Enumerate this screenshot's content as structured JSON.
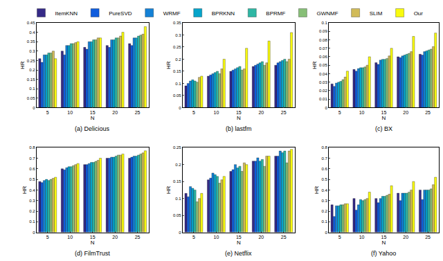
{
  "chart_data": [
    {
      "type": "bar",
      "title": "(a) Delicious",
      "x_label": "N",
      "y_label": "HR",
      "grid": false,
      "categories": [
        "5",
        "10",
        "15",
        "20",
        "25"
      ],
      "ylim": [
        0,
        0.45
      ],
      "yticks": [
        0,
        0.05,
        0.1,
        0.15,
        0.2,
        0.25,
        0.3,
        0.35,
        0.4,
        0.45
      ],
      "series": [
        {
          "name": "ItemKNN",
          "color": "#352a87",
          "values": [
            0.26,
            0.3,
            0.32,
            0.33,
            0.34
          ]
        },
        {
          "name": "PureSVD",
          "color": "#0f5cdd",
          "values": [
            0.24,
            0.28,
            0.31,
            0.32,
            0.33
          ]
        },
        {
          "name": "WRMF",
          "color": "#1481d6",
          "values": [
            0.28,
            0.33,
            0.35,
            0.36,
            0.37
          ]
        },
        {
          "name": "BPRKNN",
          "color": "#06a4ca",
          "values": [
            0.28,
            0.33,
            0.35,
            0.36,
            0.37
          ]
        },
        {
          "name": "BPRMF",
          "color": "#2eb7a4",
          "values": [
            0.29,
            0.34,
            0.36,
            0.37,
            0.38
          ]
        },
        {
          "name": "GWNMF",
          "color": "#87bf77",
          "values": [
            0.29,
            0.34,
            0.36,
            0.37,
            0.385
          ]
        },
        {
          "name": "SLIM",
          "color": "#d1bb59",
          "values": [
            0.3,
            0.345,
            0.37,
            0.38,
            0.39
          ]
        },
        {
          "name": "Our",
          "color": "#f9fb0e",
          "values": [
            0.26,
            0.35,
            0.37,
            0.4,
            0.43
          ]
        }
      ]
    },
    {
      "type": "bar",
      "title": "(b) lastfm",
      "x_label": "N",
      "y_label": "HR",
      "grid": false,
      "categories": [
        "5",
        "10",
        "15",
        "20",
        "25"
      ],
      "ylim": [
        0,
        0.35
      ],
      "yticks": [
        0,
        0.05,
        0.1,
        0.15,
        0.2,
        0.25,
        0.3,
        0.35
      ],
      "series": [
        {
          "name": "ItemKNN",
          "color": "#352a87",
          "values": [
            0.09,
            0.13,
            0.15,
            0.17,
            0.175
          ]
        },
        {
          "name": "PureSVD",
          "color": "#0f5cdd",
          "values": [
            0.1,
            0.135,
            0.155,
            0.175,
            0.185
          ]
        },
        {
          "name": "WRMF",
          "color": "#1481d6",
          "values": [
            0.11,
            0.14,
            0.16,
            0.18,
            0.19
          ]
        },
        {
          "name": "BPRKNN",
          "color": "#06a4ca",
          "values": [
            0.115,
            0.145,
            0.165,
            0.185,
            0.195
          ]
        },
        {
          "name": "BPRMF",
          "color": "#2eb7a4",
          "values": [
            0.11,
            0.15,
            0.17,
            0.19,
            0.2
          ]
        },
        {
          "name": "GWNMF",
          "color": "#87bf77",
          "values": [
            0.105,
            0.14,
            0.155,
            0.175,
            0.19
          ]
        },
        {
          "name": "SLIM",
          "color": "#d1bb59",
          "values": [
            0.125,
            0.16,
            0.16,
            0.185,
            0.2
          ]
        },
        {
          "name": "Our",
          "color": "#f9fb0e",
          "values": [
            0.13,
            0.2,
            0.245,
            0.275,
            0.31
          ]
        }
      ]
    },
    {
      "type": "bar",
      "title": "(c) BX",
      "x_label": "N",
      "y_label": "HR",
      "grid": false,
      "categories": [
        "5",
        "10",
        "15",
        "20",
        "25"
      ],
      "ylim": [
        0,
        0.1
      ],
      "yticks": [
        0,
        0.01,
        0.02,
        0.03,
        0.04,
        0.05,
        0.06,
        0.07,
        0.08,
        0.09,
        0.1
      ],
      "series": [
        {
          "name": "ItemKNN",
          "color": "#352a87",
          "values": [
            0.028,
            0.045,
            0.053,
            0.06,
            0.063
          ]
        },
        {
          "name": "PureSVD",
          "color": "#0f5cdd",
          "values": [
            0.025,
            0.043,
            0.051,
            0.059,
            0.062
          ]
        },
        {
          "name": "WRMF",
          "color": "#1481d6",
          "values": [
            0.029,
            0.046,
            0.056,
            0.061,
            0.066
          ]
        },
        {
          "name": "BPRKNN",
          "color": "#06a4ca",
          "values": [
            0.03,
            0.047,
            0.057,
            0.062,
            0.067
          ]
        },
        {
          "name": "BPRMF",
          "color": "#2eb7a4",
          "values": [
            0.031,
            0.047,
            0.057,
            0.063,
            0.068
          ]
        },
        {
          "name": "GWNMF",
          "color": "#87bf77",
          "values": [
            0.033,
            0.048,
            0.058,
            0.064,
            0.069
          ]
        },
        {
          "name": "SLIM",
          "color": "#d1bb59",
          "values": [
            0.036,
            0.05,
            0.061,
            0.066,
            0.072
          ]
        },
        {
          "name": "Our",
          "color": "#f9fb0e",
          "values": [
            0.043,
            0.06,
            0.07,
            0.084,
            0.088
          ]
        }
      ]
    },
    {
      "type": "bar",
      "title": "(d) FilmTrust",
      "x_label": "N",
      "y_label": "HR",
      "grid": false,
      "categories": [
        "5",
        "10",
        "15",
        "20",
        "25"
      ],
      "ylim": [
        0,
        0.8
      ],
      "yticks": [
        0,
        0.1,
        0.2,
        0.3,
        0.4,
        0.5,
        0.6,
        0.7,
        0.8
      ],
      "series": [
        {
          "name": "ItemKNN",
          "color": "#352a87",
          "values": [
            0.48,
            0.6,
            0.64,
            0.7,
            0.7
          ]
        },
        {
          "name": "PureSVD",
          "color": "#0f5cdd",
          "values": [
            0.47,
            0.59,
            0.64,
            0.7,
            0.71
          ]
        },
        {
          "name": "WRMF",
          "color": "#1481d6",
          "values": [
            0.49,
            0.61,
            0.65,
            0.71,
            0.72
          ]
        },
        {
          "name": "BPRKNN",
          "color": "#06a4ca",
          "values": [
            0.5,
            0.62,
            0.66,
            0.71,
            0.72
          ]
        },
        {
          "name": "BPRMF",
          "color": "#2eb7a4",
          "values": [
            0.49,
            0.62,
            0.66,
            0.72,
            0.73
          ]
        },
        {
          "name": "GWNMF",
          "color": "#87bf77",
          "values": [
            0.5,
            0.63,
            0.67,
            0.73,
            0.74
          ]
        },
        {
          "name": "SLIM",
          "color": "#d1bb59",
          "values": [
            0.51,
            0.64,
            0.68,
            0.73,
            0.75
          ]
        },
        {
          "name": "Our",
          "color": "#f9fb0e",
          "values": [
            0.52,
            0.65,
            0.7,
            0.74,
            0.77
          ]
        }
      ]
    },
    {
      "type": "bar",
      "title": "(e) Netflix",
      "x_label": "N",
      "y_label": "HR",
      "grid": false,
      "categories": [
        "5",
        "10",
        "15",
        "20",
        "25"
      ],
      "ylim": [
        0,
        0.25
      ],
      "yticks": [
        0,
        0.05,
        0.1,
        0.15,
        0.2,
        0.25
      ],
      "series": [
        {
          "name": "ItemKNN",
          "color": "#352a87",
          "values": [
            0.115,
            0.155,
            0.18,
            0.21,
            0.225
          ]
        },
        {
          "name": "PureSVD",
          "color": "#0f5cdd",
          "values": [
            0.105,
            0.16,
            0.185,
            0.21,
            0.225
          ]
        },
        {
          "name": "WRMF",
          "color": "#1481d6",
          "values": [
            0.135,
            0.175,
            0.2,
            0.22,
            0.24
          ]
        },
        {
          "name": "BPRKNN",
          "color": "#06a4ca",
          "values": [
            0.13,
            0.17,
            0.19,
            0.21,
            0.235
          ]
        },
        {
          "name": "BPRMF",
          "color": "#2eb7a4",
          "values": [
            0.125,
            0.165,
            0.195,
            0.215,
            0.24
          ]
        },
        {
          "name": "GWNMF",
          "color": "#87bf77",
          "values": [
            0.09,
            0.145,
            0.18,
            0.195,
            0.205
          ]
        },
        {
          "name": "SLIM",
          "color": "#d1bb59",
          "values": [
            0.1,
            0.155,
            0.205,
            0.225,
            0.24
          ]
        },
        {
          "name": "Our",
          "color": "#f9fb0e",
          "values": [
            0.115,
            0.165,
            0.2,
            0.225,
            0.245
          ]
        }
      ]
    },
    {
      "type": "bar",
      "title": "(f) Yahoo",
      "x_label": "N",
      "y_label": "HR",
      "grid": false,
      "categories": [
        "5",
        "10",
        "15",
        "20",
        "25"
      ],
      "ylim": [
        0,
        0.8
      ],
      "yticks": [
        0,
        0.1,
        0.2,
        0.3,
        0.4,
        0.5,
        0.6,
        0.7,
        0.8
      ],
      "series": [
        {
          "name": "ItemKNN",
          "color": "#352a87",
          "values": [
            0.26,
            0.32,
            0.32,
            0.37,
            0.4
          ]
        },
        {
          "name": "PureSVD",
          "color": "#0f5cdd",
          "values": [
            0.15,
            0.21,
            0.28,
            0.3,
            0.31
          ]
        },
        {
          "name": "WRMF",
          "color": "#1481d6",
          "values": [
            0.25,
            0.26,
            0.32,
            0.37,
            0.4
          ]
        },
        {
          "name": "BPRKNN",
          "color": "#06a4ca",
          "values": [
            0.25,
            0.31,
            0.34,
            0.37,
            0.4
          ]
        },
        {
          "name": "BPRMF",
          "color": "#2eb7a4",
          "values": [
            0.26,
            0.3,
            0.34,
            0.37,
            0.4
          ]
        },
        {
          "name": "GWNMF",
          "color": "#87bf77",
          "values": [
            0.26,
            0.31,
            0.35,
            0.38,
            0.41
          ]
        },
        {
          "name": "SLIM",
          "color": "#d1bb59",
          "values": [
            0.27,
            0.32,
            0.36,
            0.4,
            0.45
          ]
        },
        {
          "name": "Our",
          "color": "#f9fb0e",
          "values": [
            0.27,
            0.38,
            0.44,
            0.48,
            0.52
          ]
        }
      ]
    }
  ]
}
